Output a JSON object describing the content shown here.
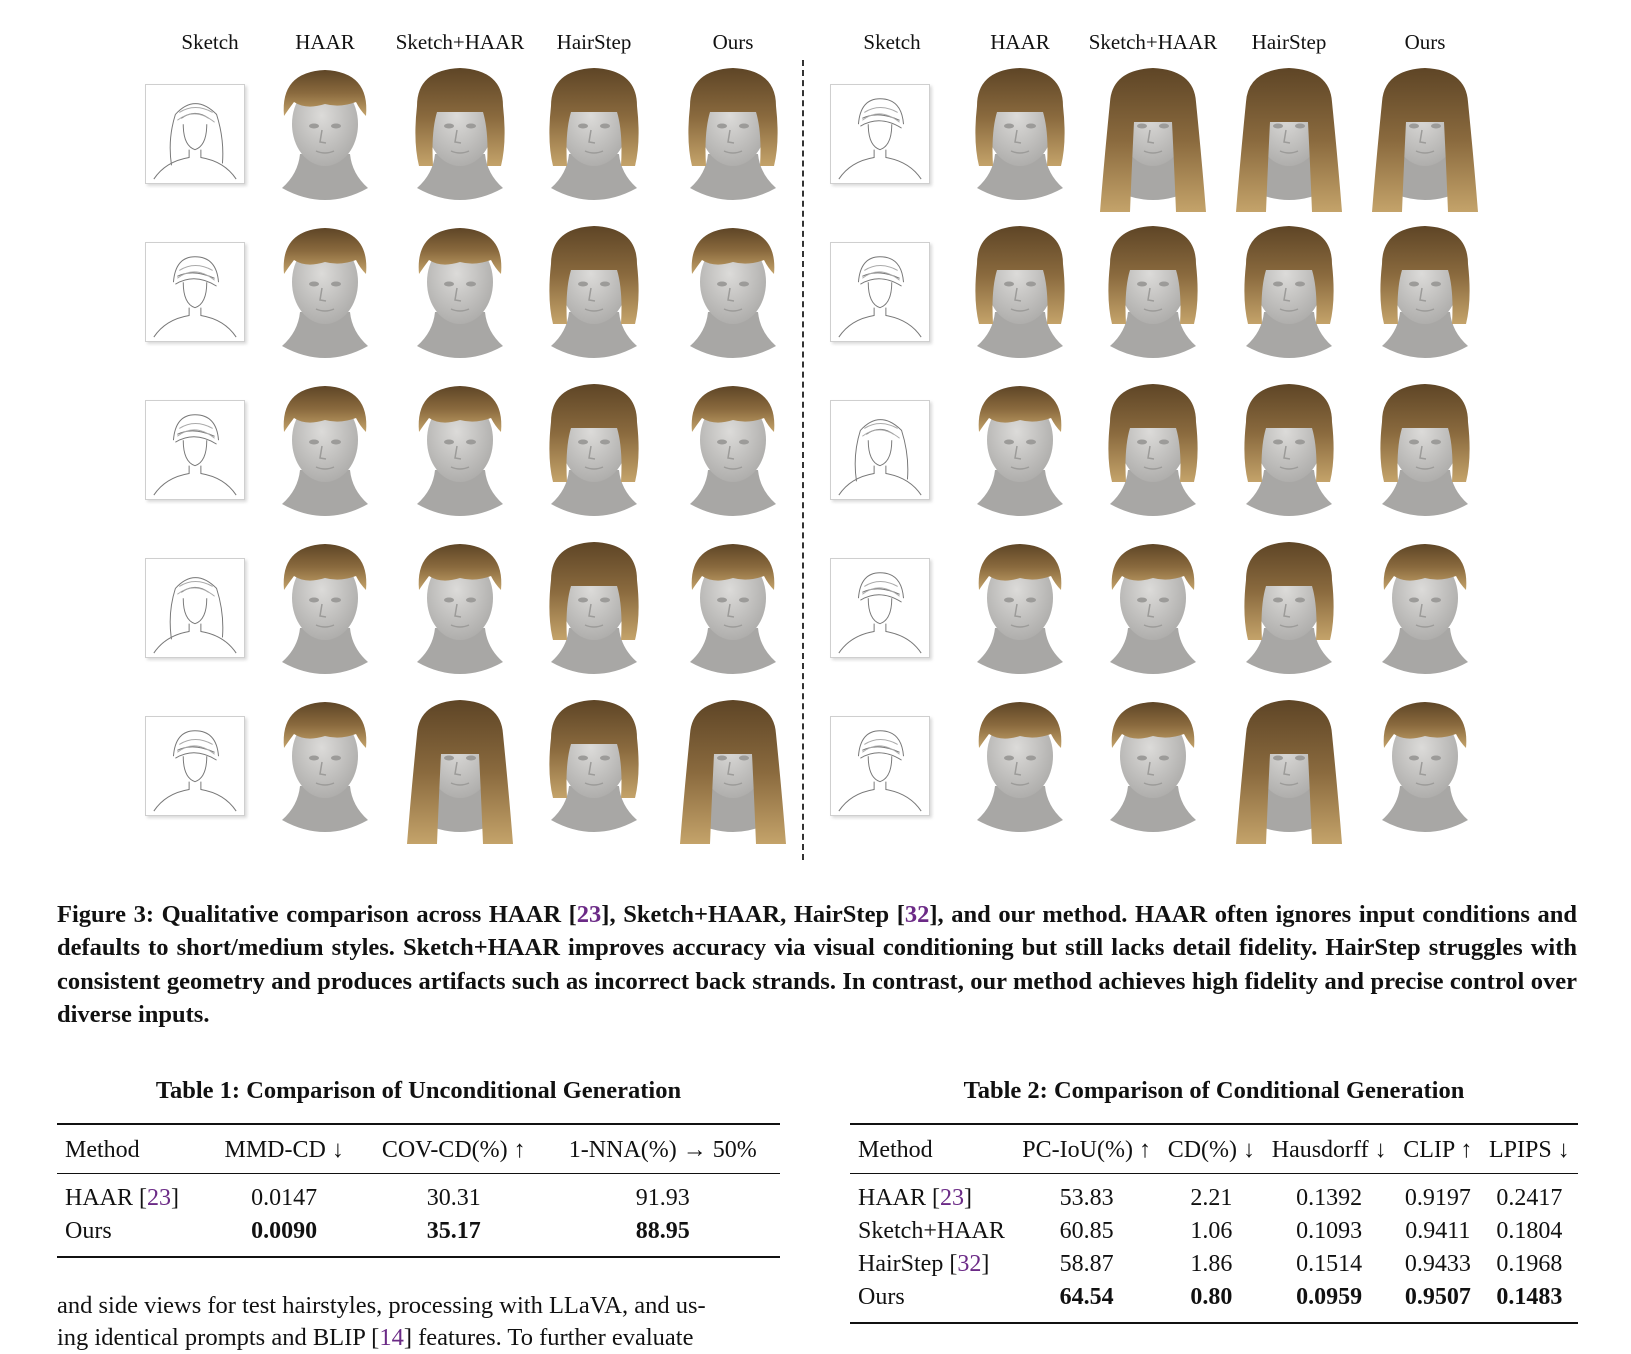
{
  "figure": {
    "left_headers": [
      "Sketch",
      "HAAR",
      "Sketch+HAAR",
      "HairStep",
      "Ours"
    ],
    "right_headers": [
      "Sketch",
      "HAAR",
      "Sketch+HAAR",
      "HairStep",
      "Ours"
    ],
    "rows": 5,
    "hair_colors": {
      "base": "#8a6a3e",
      "dark": "#5e4526",
      "light": "#c4a36a",
      "face": "#c9c8c6",
      "face_shade": "#a8a7a5"
    }
  },
  "caption": {
    "label": "Figure 3:",
    "parts": [
      {
        "t": " Qualitative comparison across HAAR [",
        "ref": false
      },
      {
        "t": "23",
        "ref": true
      },
      {
        "t": "], Sketch+HAAR, HairStep [",
        "ref": false
      },
      {
        "t": "32",
        "ref": true
      },
      {
        "t": "], and our method. HAAR often ignores input conditions and defaults to short/medium styles. Sketch+HAAR improves accuracy via visual conditioning but still lacks detail fidelity. HairStep struggles with consistent geometry and produces artifacts such as incorrect back strands. In contrast, our method achieves high fidelity and precise control over diverse inputs.",
        "ref": false
      }
    ]
  },
  "table1": {
    "caption": "Table 1: Comparison of Unconditional Generation",
    "headers": [
      "Method",
      "MMD-CD ↓",
      "COV-CD(%) ↑",
      "1-NNA(%) → 50%"
    ],
    "rows": [
      {
        "method": "HAAR [",
        "ref": "23",
        "suffix": "]",
        "values": [
          "0.0147",
          "30.31",
          "91.93"
        ],
        "bold": false
      },
      {
        "method": "Ours",
        "ref": "",
        "suffix": "",
        "values": [
          "0.0090",
          "35.17",
          "88.95"
        ],
        "bold": true
      }
    ]
  },
  "table2": {
    "caption": "Table 2: Comparison of Conditional Generation",
    "headers": [
      "Method",
      "PC-IoU(%) ↑",
      "CD(%) ↓",
      "Hausdorff ↓",
      "CLIP ↑",
      "LPIPS ↓"
    ],
    "rows": [
      {
        "method": "HAAR [",
        "ref": "23",
        "suffix": "]",
        "values": [
          "53.83",
          "2.21",
          "0.1392",
          "0.9197",
          "0.2417"
        ],
        "bold": false
      },
      {
        "method": "Sketch+HAAR",
        "ref": "",
        "suffix": "",
        "values": [
          "60.85",
          "1.06",
          "0.1093",
          "0.9411",
          "0.1804"
        ],
        "bold": false
      },
      {
        "method": "HairStep [",
        "ref": "32",
        "suffix": "]",
        "values": [
          "58.87",
          "1.86",
          "0.1514",
          "0.9433",
          "0.1968"
        ],
        "bold": false
      },
      {
        "method": "Ours",
        "ref": "",
        "suffix": "",
        "values": [
          "64.54",
          "0.80",
          "0.0959",
          "0.9507",
          "0.1483"
        ],
        "bold": true
      }
    ]
  },
  "body": {
    "line1": "and side views for test hairstyles, processing with LLaVA, and us-",
    "line2_a": "ing identical prompts and BLIP [",
    "line2_ref": "14",
    "line2_b": "] features. To further evaluate"
  }
}
